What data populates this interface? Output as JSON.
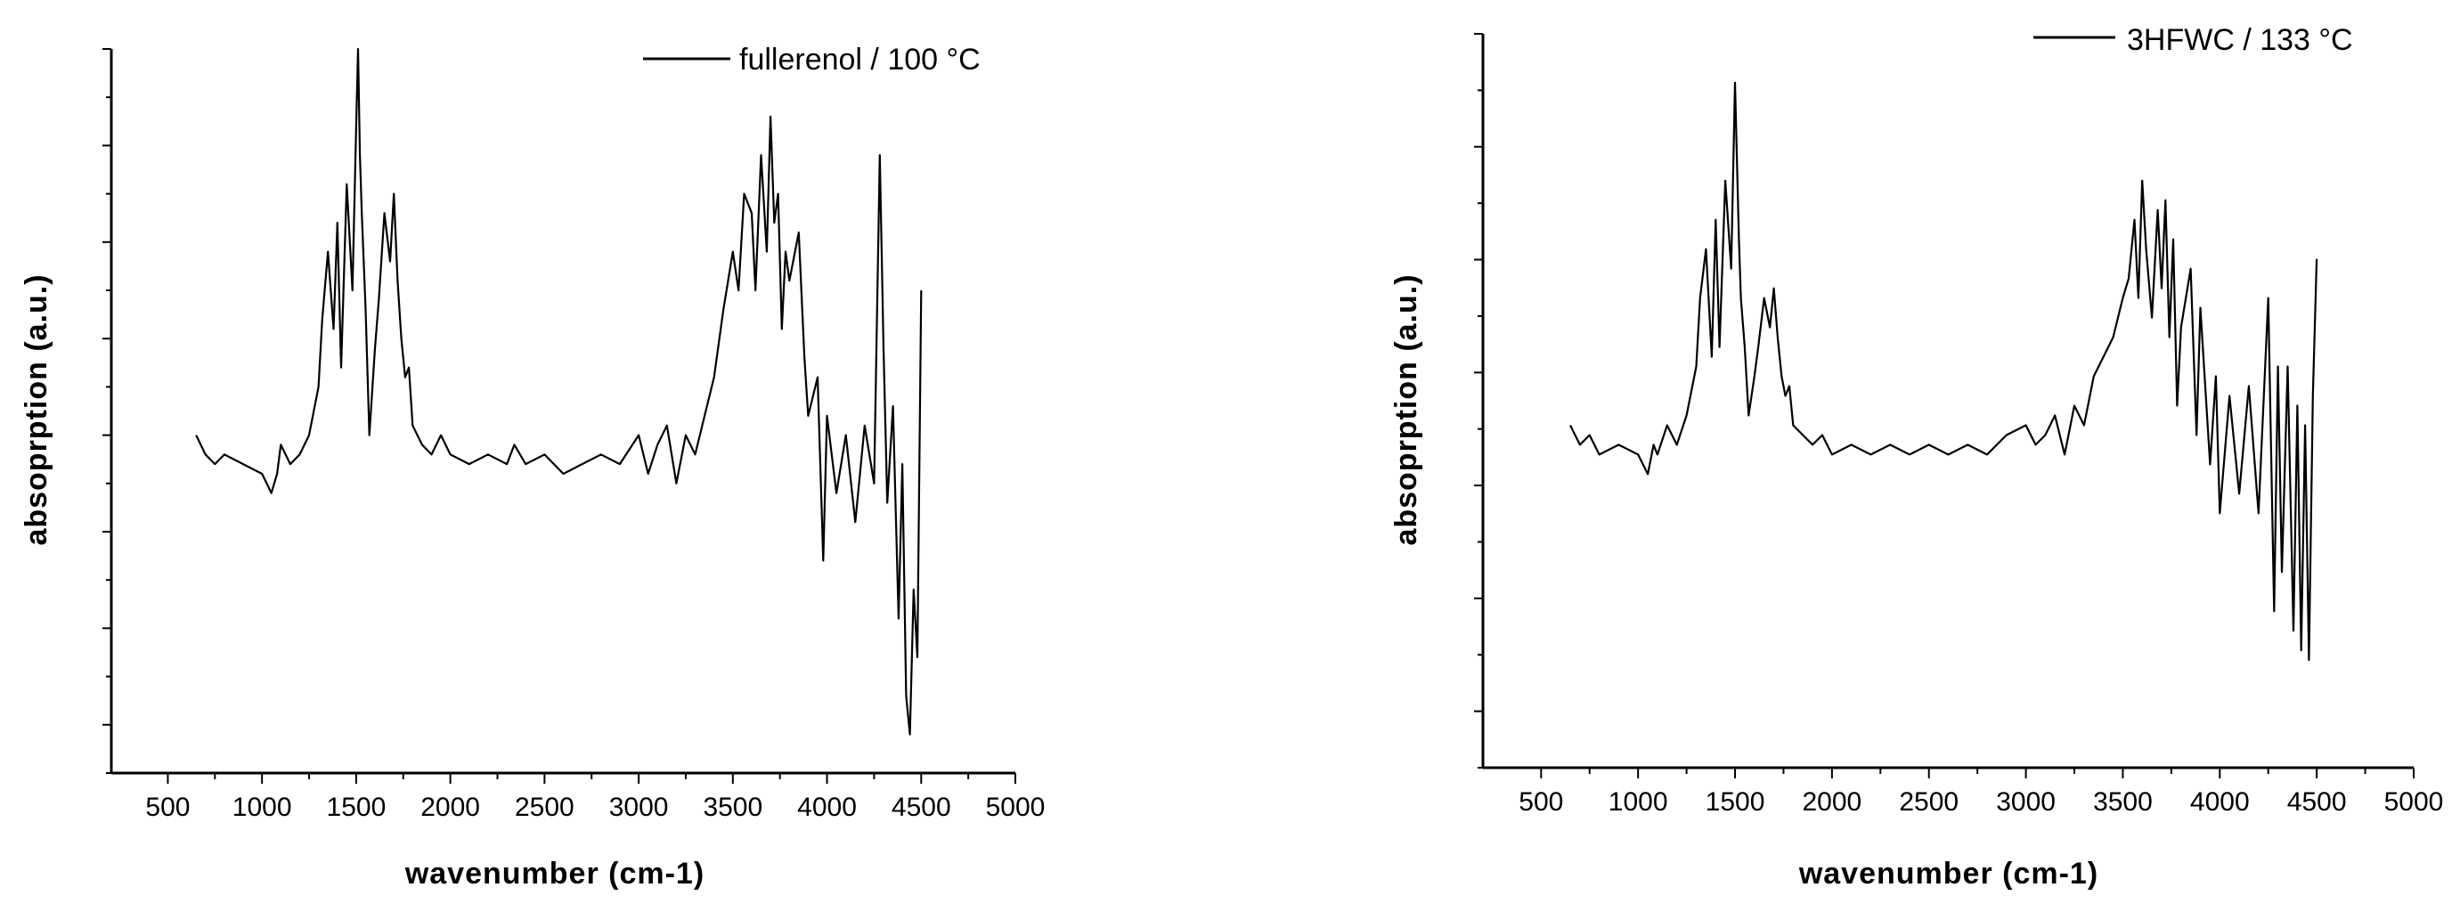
{
  "chart_data": [
    {
      "type": "line",
      "title": "",
      "xlabel": "wavenumber (cm-1)",
      "ylabel": "absoprption (a.u.)",
      "xlim": [
        200,
        5000
      ],
      "xticks": [
        500,
        1000,
        1500,
        2000,
        2500,
        3000,
        3500,
        4000,
        4500,
        5000
      ],
      "ylim": [
        -3.2,
        4.3
      ],
      "yticks_labeled": false,
      "grid": false,
      "legend_position": "top-right",
      "series": [
        {
          "name": "fullerenol / 100 °C",
          "color": "#000000",
          "x": [
            650,
            700,
            750,
            800,
            900,
            1000,
            1050,
            1080,
            1100,
            1150,
            1200,
            1250,
            1300,
            1320,
            1350,
            1380,
            1400,
            1420,
            1450,
            1480,
            1500,
            1510,
            1520,
            1530,
            1550,
            1570,
            1600,
            1620,
            1650,
            1680,
            1700,
            1720,
            1740,
            1760,
            1780,
            1800,
            1850,
            1900,
            1950,
            2000,
            2100,
            2200,
            2300,
            2340,
            2400,
            2500,
            2600,
            2700,
            2800,
            2900,
            3000,
            3050,
            3100,
            3150,
            3200,
            3250,
            3300,
            3350,
            3400,
            3450,
            3500,
            3530,
            3560,
            3600,
            3620,
            3650,
            3680,
            3700,
            3720,
            3740,
            3760,
            3780,
            3800,
            3850,
            3880,
            3900,
            3950,
            3980,
            4000,
            4050,
            4100,
            4150,
            4200,
            4250,
            4280,
            4300,
            4320,
            4350,
            4380,
            4400,
            4420,
            4440,
            4460,
            4480,
            4500
          ],
          "y": [
            0.3,
            0.1,
            0.0,
            0.1,
            0.0,
            -0.1,
            -0.3,
            -0.1,
            0.2,
            0.0,
            0.1,
            0.3,
            0.8,
            1.5,
            2.2,
            1.4,
            2.5,
            1.0,
            2.9,
            1.8,
            3.5,
            4.3,
            3.2,
            2.6,
            1.6,
            0.3,
            1.2,
            1.7,
            2.6,
            2.1,
            2.8,
            1.9,
            1.3,
            0.9,
            1.0,
            0.4,
            0.2,
            0.1,
            0.3,
            0.1,
            0.0,
            0.1,
            0.0,
            0.2,
            0.0,
            0.1,
            -0.1,
            0.0,
            0.1,
            0.0,
            0.3,
            -0.1,
            0.2,
            0.4,
            -0.2,
            0.3,
            0.1,
            0.5,
            0.9,
            1.6,
            2.2,
            1.8,
            2.8,
            2.6,
            1.8,
            3.2,
            2.2,
            3.6,
            2.5,
            2.8,
            1.4,
            2.2,
            1.9,
            2.4,
            1.1,
            0.5,
            0.9,
            -1.0,
            0.5,
            -0.3,
            0.3,
            -0.6,
            0.4,
            -0.2,
            3.2,
            1.2,
            -0.4,
            0.6,
            -1.6,
            0.0,
            -2.4,
            -2.8,
            -1.3,
            -2.0,
            1.8
          ]
        },
        {
          "name": "3HFWC / 133 °C",
          "color": "#000000",
          "x": [
            650,
            700,
            750,
            800,
            900,
            1000,
            1050,
            1080,
            1100,
            1150,
            1200,
            1250,
            1300,
            1320,
            1350,
            1380,
            1400,
            1420,
            1450,
            1480,
            1500,
            1510,
            1520,
            1530,
            1550,
            1570,
            1600,
            1620,
            1650,
            1680,
            1700,
            1720,
            1740,
            1760,
            1780,
            1800,
            1850,
            1900,
            1950,
            2000,
            2100,
            2200,
            2300,
            2400,
            2500,
            2600,
            2700,
            2800,
            2900,
            3000,
            3050,
            3100,
            3150,
            3200,
            3250,
            3300,
            3350,
            3400,
            3450,
            3500,
            3530,
            3560,
            3580,
            3600,
            3620,
            3650,
            3680,
            3700,
            3720,
            3740,
            3760,
            3780,
            3800,
            3850,
            3880,
            3900,
            3950,
            3980,
            4000,
            4050,
            4100,
            4150,
            4200,
            4250,
            4280,
            4300,
            4320,
            4350,
            4380,
            4400,
            4420,
            4440,
            4460,
            4480,
            4500
          ],
          "y": [
            0.3,
            0.1,
            0.2,
            0.0,
            0.1,
            0.0,
            -0.2,
            0.1,
            0.0,
            0.3,
            0.1,
            0.4,
            0.9,
            1.6,
            2.1,
            1.0,
            2.4,
            1.1,
            2.8,
            1.9,
            3.8,
            3.0,
            2.2,
            1.6,
            1.1,
            0.4,
            0.8,
            1.1,
            1.6,
            1.3,
            1.7,
            1.2,
            0.8,
            0.6,
            0.7,
            0.3,
            0.2,
            0.1,
            0.2,
            0.0,
            0.1,
            0.0,
            0.1,
            0.0,
            0.1,
            0.0,
            0.1,
            0.0,
            0.2,
            0.3,
            0.1,
            0.2,
            0.4,
            0.0,
            0.5,
            0.3,
            0.8,
            1.0,
            1.2,
            1.6,
            1.8,
            2.4,
            1.6,
            2.8,
            2.1,
            1.4,
            2.5,
            1.7,
            2.6,
            1.2,
            2.2,
            0.5,
            1.3,
            1.9,
            0.2,
            1.5,
            -0.1,
            0.8,
            -0.6,
            0.6,
            -0.4,
            0.7,
            -0.6,
            1.6,
            -1.6,
            0.9,
            -1.2,
            0.9,
            -1.8,
            0.5,
            -2.0,
            0.3,
            -2.1,
            0.6,
            2.0
          ]
        }
      ]
    }
  ]
}
